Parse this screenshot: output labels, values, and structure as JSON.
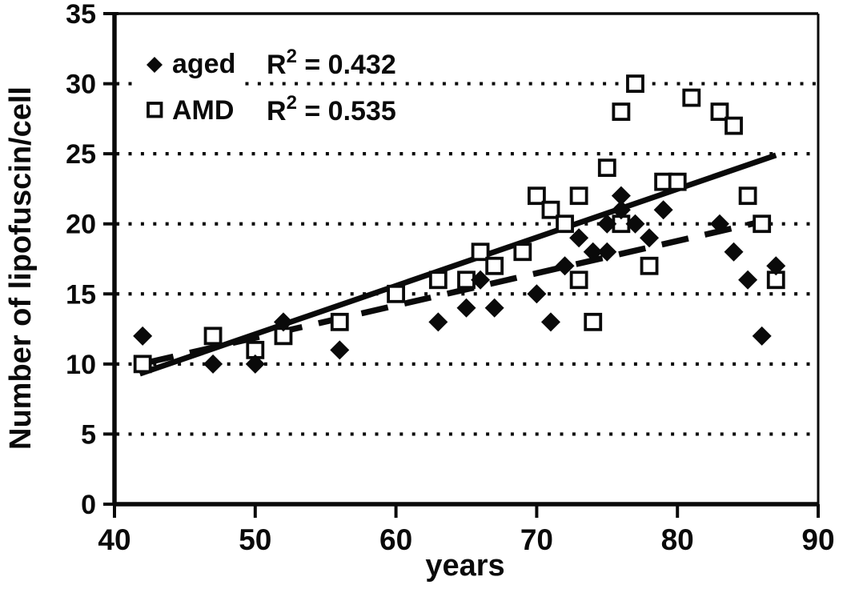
{
  "chart_data": {
    "type": "scatter",
    "title": "",
    "xlabel": "years",
    "ylabel": "Number of lipofuscin/cell",
    "xlim": [
      40,
      90
    ],
    "ylim": [
      0,
      35
    ],
    "xticks": [
      40,
      50,
      60,
      70,
      80,
      90
    ],
    "yticks": [
      0,
      5,
      10,
      15,
      20,
      25,
      30,
      35
    ],
    "grid": {
      "style": "dotted",
      "values": [
        5,
        10,
        15,
        20,
        25,
        30
      ],
      "legend_gap": {
        "value": 30,
        "x_range": [
          41.3,
          49.3
        ]
      }
    },
    "legend": {
      "position": "top-left",
      "entries": [
        {
          "label": "aged",
          "marker": "filled-diamond",
          "r2_prefix": "R",
          "r2_sup": "2",
          "r2_rest": " = 0.432"
        },
        {
          "label": "AMD",
          "marker": "open-square",
          "r2_prefix": "R",
          "r2_sup": "2",
          "r2_rest": " = 0.535"
        }
      ]
    },
    "series": [
      {
        "name": "aged",
        "marker": "filled-diamond",
        "color": "#0a0a0a",
        "points": [
          [
            42,
            12
          ],
          [
            47,
            10
          ],
          [
            50,
            10
          ],
          [
            52,
            13
          ],
          [
            56,
            11
          ],
          [
            63,
            13
          ],
          [
            65,
            14
          ],
          [
            66,
            16
          ],
          [
            67,
            14
          ],
          [
            70,
            15
          ],
          [
            71,
            13
          ],
          [
            72,
            17
          ],
          [
            73,
            19
          ],
          [
            74,
            18
          ],
          [
            75,
            18
          ],
          [
            75,
            20
          ],
          [
            76,
            21
          ],
          [
            76,
            22
          ],
          [
            77,
            20
          ],
          [
            78,
            19
          ],
          [
            79,
            21
          ],
          [
            83,
            20
          ],
          [
            84,
            18
          ],
          [
            85,
            16
          ],
          [
            86,
            12
          ],
          [
            87,
            17
          ]
        ]
      },
      {
        "name": "AMD",
        "marker": "open-square",
        "color": "#0a0a0a",
        "points": [
          [
            42,
            10
          ],
          [
            47,
            12
          ],
          [
            50,
            11
          ],
          [
            52,
            12
          ],
          [
            56,
            13
          ],
          [
            60,
            15
          ],
          [
            63,
            16
          ],
          [
            65,
            16
          ],
          [
            66,
            18
          ],
          [
            67,
            17
          ],
          [
            69,
            18
          ],
          [
            70,
            22
          ],
          [
            71,
            21
          ],
          [
            72,
            20
          ],
          [
            73,
            16
          ],
          [
            73,
            22
          ],
          [
            74,
            13
          ],
          [
            75,
            24
          ],
          [
            76,
            20
          ],
          [
            76,
            28
          ],
          [
            77,
            30
          ],
          [
            78,
            17
          ],
          [
            79,
            23
          ],
          [
            80,
            23
          ],
          [
            81,
            29
          ],
          [
            83,
            28
          ],
          [
            84,
            27
          ],
          [
            85,
            22
          ],
          [
            86,
            20
          ],
          [
            87,
            16
          ]
        ]
      }
    ],
    "trendlines": [
      {
        "series": "AMD",
        "style": "solid",
        "x1": 41.8,
        "y1": 9.3,
        "x2": 87.0,
        "y2": 24.9,
        "r2": 0.535
      },
      {
        "series": "aged",
        "style": "dashed",
        "x1": 42.3,
        "y1": 10.1,
        "x2": 86.6,
        "y2": 20.3,
        "r2": 0.432
      }
    ],
    "colors": {
      "foreground": "#0a0a0a",
      "background": "#ffffff"
    }
  }
}
